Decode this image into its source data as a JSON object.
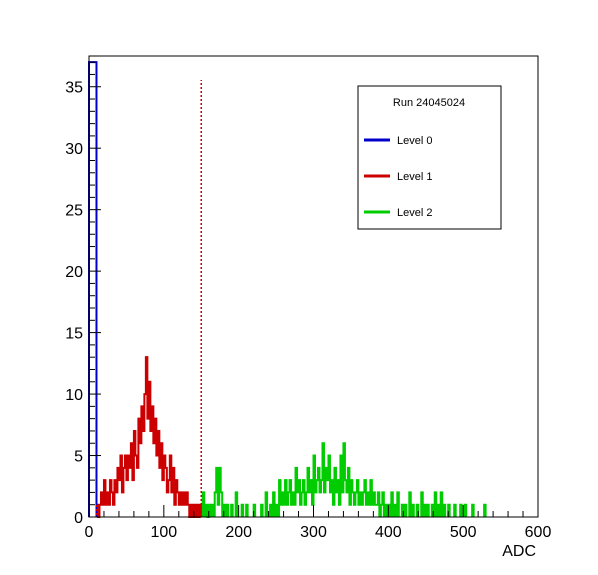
{
  "chart_data": {
    "type": "histogram",
    "title": "",
    "xlabel": "ADC",
    "ylabel": "",
    "xlim": [
      0,
      600
    ],
    "ylim": [
      0,
      37.5
    ],
    "x_ticks": [
      0,
      100,
      200,
      300,
      400,
      500,
      600
    ],
    "y_ticks": [
      0,
      5,
      10,
      15,
      20,
      25,
      30,
      35
    ],
    "grid": false,
    "bin_width": 2,
    "legend": {
      "placement": "top-right",
      "header": "Run 24045024",
      "entries": [
        "Level 0",
        "Level 1",
        "Level 2"
      ]
    },
    "threshold_lines": [
      {
        "x": 10,
        "color": "#0000cc",
        "style": "dotted"
      },
      {
        "x": 150,
        "color": "#cc0000",
        "style": "dotted"
      }
    ],
    "series": [
      {
        "name": "Level 0",
        "color": "#0000cc",
        "bins": [
          [
            0,
            37
          ],
          [
            2,
            37
          ],
          [
            4,
            37
          ],
          [
            6,
            37
          ],
          [
            8,
            37
          ]
        ]
      },
      {
        "name": "Level 1",
        "color": "#cc0000",
        "bins": [
          [
            10,
            1
          ],
          [
            12,
            0
          ],
          [
            14,
            1
          ],
          [
            16,
            2
          ],
          [
            18,
            1
          ],
          [
            20,
            3
          ],
          [
            22,
            1
          ],
          [
            24,
            2
          ],
          [
            26,
            1
          ],
          [
            28,
            3
          ],
          [
            30,
            2
          ],
          [
            32,
            1
          ],
          [
            34,
            3
          ],
          [
            36,
            2
          ],
          [
            38,
            4
          ],
          [
            40,
            3
          ],
          [
            42,
            5
          ],
          [
            44,
            2
          ],
          [
            46,
            4
          ],
          [
            48,
            5
          ],
          [
            50,
            3
          ],
          [
            52,
            5
          ],
          [
            54,
            4
          ],
          [
            56,
            6
          ],
          [
            58,
            3
          ],
          [
            60,
            7
          ],
          [
            62,
            5
          ],
          [
            64,
            4
          ],
          [
            66,
            8
          ],
          [
            68,
            6
          ],
          [
            70,
            9
          ],
          [
            72,
            7
          ],
          [
            74,
            10
          ],
          [
            76,
            13
          ],
          [
            78,
            8
          ],
          [
            80,
            11
          ],
          [
            82,
            7
          ],
          [
            84,
            9
          ],
          [
            86,
            6
          ],
          [
            88,
            8
          ],
          [
            90,
            5
          ],
          [
            92,
            7
          ],
          [
            94,
            4
          ],
          [
            96,
            6
          ],
          [
            98,
            3
          ],
          [
            100,
            5
          ],
          [
            102,
            4
          ],
          [
            104,
            2
          ],
          [
            106,
            3
          ],
          [
            108,
            5
          ],
          [
            110,
            2
          ],
          [
            112,
            4
          ],
          [
            114,
            1
          ],
          [
            116,
            3
          ],
          [
            118,
            2
          ],
          [
            120,
            1
          ],
          [
            122,
            2
          ],
          [
            124,
            1
          ],
          [
            126,
            2
          ],
          [
            128,
            1
          ],
          [
            130,
            2
          ],
          [
            132,
            1
          ],
          [
            134,
            0
          ],
          [
            136,
            1
          ],
          [
            138,
            0
          ],
          [
            140,
            1
          ],
          [
            142,
            0
          ],
          [
            144,
            1
          ],
          [
            146,
            0
          ],
          [
            148,
            1
          ]
        ]
      },
      {
        "name": "Level 2",
        "color": "#00cc00",
        "bins": [
          [
            152,
            2
          ],
          [
            156,
            1
          ],
          [
            158,
            0
          ],
          [
            160,
            1
          ],
          [
            164,
            1
          ],
          [
            168,
            2
          ],
          [
            170,
            4
          ],
          [
            172,
            1
          ],
          [
            174,
            4
          ],
          [
            176,
            2
          ],
          [
            180,
            1
          ],
          [
            184,
            1
          ],
          [
            190,
            1
          ],
          [
            196,
            2
          ],
          [
            204,
            1
          ],
          [
            210,
            1
          ],
          [
            220,
            1
          ],
          [
            230,
            1
          ],
          [
            236,
            2
          ],
          [
            242,
            1
          ],
          [
            246,
            2
          ],
          [
            250,
            1
          ],
          [
            254,
            3
          ],
          [
            256,
            1
          ],
          [
            258,
            2
          ],
          [
            260,
            1
          ],
          [
            262,
            3
          ],
          [
            264,
            1
          ],
          [
            266,
            2
          ],
          [
            268,
            3
          ],
          [
            270,
            1
          ],
          [
            272,
            2
          ],
          [
            274,
            1
          ],
          [
            276,
            4
          ],
          [
            278,
            2
          ],
          [
            280,
            3
          ],
          [
            282,
            1
          ],
          [
            284,
            2
          ],
          [
            286,
            3
          ],
          [
            288,
            1
          ],
          [
            290,
            2
          ],
          [
            292,
            4
          ],
          [
            294,
            2
          ],
          [
            296,
            3
          ],
          [
            298,
            1
          ],
          [
            300,
            5
          ],
          [
            302,
            2
          ],
          [
            304,
            3
          ],
          [
            306,
            4
          ],
          [
            308,
            2
          ],
          [
            310,
            3
          ],
          [
            312,
            6
          ],
          [
            314,
            2
          ],
          [
            316,
            4
          ],
          [
            318,
            3
          ],
          [
            320,
            5
          ],
          [
            322,
            2
          ],
          [
            324,
            3
          ],
          [
            326,
            1
          ],
          [
            328,
            4
          ],
          [
            330,
            2
          ],
          [
            332,
            3
          ],
          [
            334,
            1
          ],
          [
            336,
            5
          ],
          [
            338,
            2
          ],
          [
            340,
            6
          ],
          [
            342,
            3
          ],
          [
            344,
            2
          ],
          [
            346,
            4
          ],
          [
            348,
            1
          ],
          [
            350,
            3
          ],
          [
            352,
            2
          ],
          [
            354,
            1
          ],
          [
            356,
            2
          ],
          [
            358,
            3
          ],
          [
            360,
            1
          ],
          [
            362,
            2
          ],
          [
            364,
            1
          ],
          [
            366,
            2
          ],
          [
            368,
            3
          ],
          [
            370,
            1
          ],
          [
            372,
            2
          ],
          [
            374,
            1
          ],
          [
            376,
            3
          ],
          [
            378,
            1
          ],
          [
            380,
            2
          ],
          [
            382,
            1
          ],
          [
            384,
            1
          ],
          [
            386,
            2
          ],
          [
            390,
            1
          ],
          [
            392,
            2
          ],
          [
            396,
            1
          ],
          [
            400,
            1
          ],
          [
            404,
            2
          ],
          [
            408,
            1
          ],
          [
            412,
            2
          ],
          [
            418,
            1
          ],
          [
            422,
            1
          ],
          [
            428,
            2
          ],
          [
            432,
            1
          ],
          [
            438,
            1
          ],
          [
            444,
            2
          ],
          [
            448,
            1
          ],
          [
            452,
            1
          ],
          [
            458,
            1
          ],
          [
            462,
            2
          ],
          [
            466,
            1
          ],
          [
            470,
            2
          ],
          [
            474,
            1
          ],
          [
            480,
            1
          ],
          [
            488,
            1
          ],
          [
            496,
            1
          ],
          [
            502,
            1
          ],
          [
            512,
            1
          ],
          [
            528,
            1
          ]
        ]
      }
    ]
  }
}
